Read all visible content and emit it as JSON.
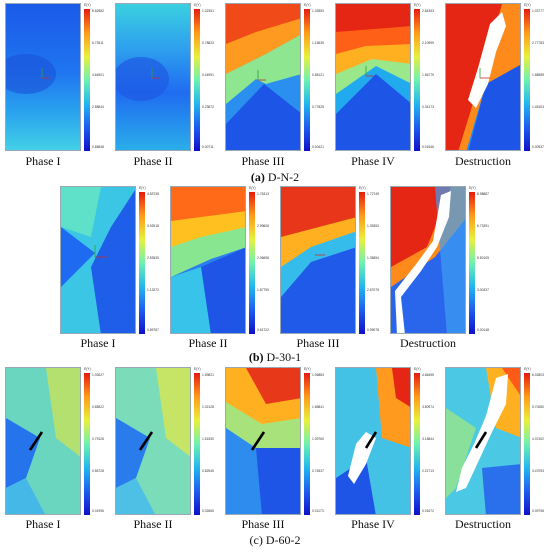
{
  "groups": [
    {
      "caption_letter": "(a)",
      "caption_name": "D-N-2",
      "panels": [
        {
          "label": "Phase I",
          "colorbar_title": "E(Y)",
          "ticks": [
            "8.82582",
            "6.72511",
            "4.64901",
            "2.58844",
            "0.85848"
          ]
        },
        {
          "label": "Phase II",
          "colorbar_title": "E(Y)",
          "ticks": [
            "1.02351",
            "0.78823",
            "0.44991",
            "0.23872",
            "0.00711"
          ]
        },
        {
          "label": "Phase III",
          "colorbar_title": "E(Y)",
          "ticks": [
            "1.33553",
            "1.15635",
            "0.85121",
            "0.77825",
            "0.00421"
          ]
        },
        {
          "label": "Phase IV",
          "colorbar_title": "E(Y)",
          "ticks": [
            "2.84393",
            "2.10999",
            "1.56779",
            "0.34173",
            "0.01546"
          ]
        },
        {
          "label": "Destruction",
          "colorbar_title": "E(Y)",
          "ticks": [
            "1.03777",
            "2.77783",
            "1.88989",
            "1.45103",
            "0.00937"
          ]
        }
      ]
    },
    {
      "caption_letter": "(b)",
      "caption_name": "D-30-1",
      "panels": [
        {
          "label": "Phase I",
          "colorbar_title": "E(Y)",
          "ticks": [
            "4.83735",
            "3.92518",
            "2.53535",
            "1.13272",
            "0.89787"
          ]
        },
        {
          "label": "Phase II",
          "colorbar_title": "E(Y)",
          "ticks": [
            "1.76313",
            "2.99608",
            "2.06698",
            "1.87795",
            "0.61722"
          ]
        },
        {
          "label": "Phase III",
          "colorbar_title": "E(Y)",
          "ticks": [
            "1.72749",
            "1.39353",
            "1.35894",
            "2.67075",
            "0.99078"
          ]
        },
        {
          "label": "Destruction",
          "colorbar_title": "E(Y)",
          "ticks": [
            "8.98887",
            "6.73391",
            "5.50105",
            "3.00337",
            "0.00148"
          ]
        }
      ]
    },
    {
      "caption_letter": "(c)",
      "caption_name": "D-60-2",
      "panels": [
        {
          "label": "Phase I",
          "colorbar_title": "E(Y)",
          "ticks": [
            "1.03027",
            "0.85522",
            "0.79126",
            "0.56728",
            "0.01996"
          ]
        },
        {
          "label": "Phase II",
          "colorbar_title": "E(Y)",
          "ticks": [
            "1.59821",
            "1.02128",
            "1.51530",
            "0.82545",
            "0.02665"
          ]
        },
        {
          "label": "Phase III",
          "colorbar_title": "E(Y)",
          "ticks": [
            "1.06883",
            "1.65841",
            "1.09760",
            "0.74537",
            "0.01173"
          ]
        },
        {
          "label": "Phase IV",
          "colorbar_title": "E(Y)",
          "ticks": [
            "4.66495",
            "3.80974",
            "3.15844",
            "2.21713",
            "0.01672"
          ]
        },
        {
          "label": "Destruction",
          "colorbar_title": "E(Y)",
          "ticks": [
            "6.02803",
            "5.70280",
            "4.37402",
            "3.47093",
            "0.09798"
          ]
        }
      ]
    }
  ]
}
